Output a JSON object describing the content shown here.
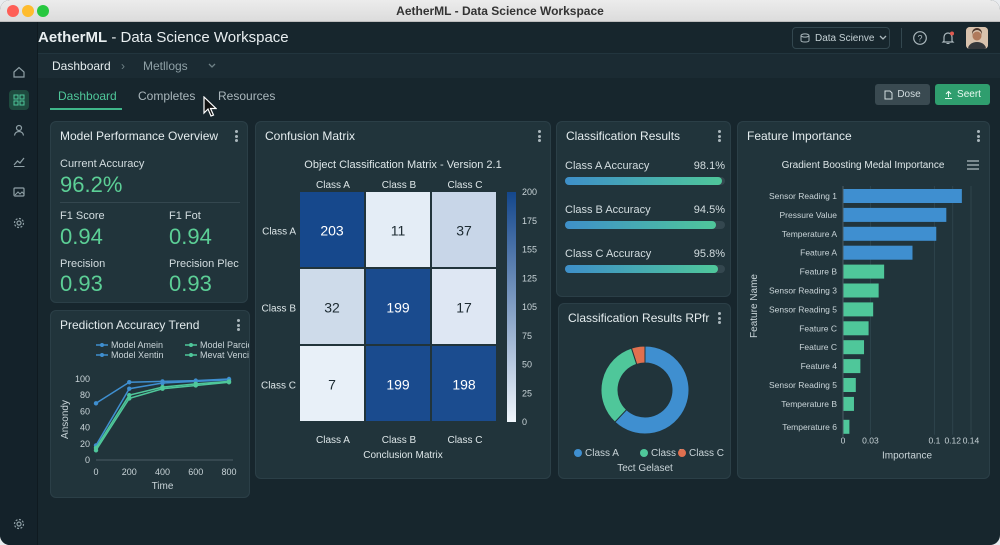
{
  "window": {
    "title": "AetherML - Data Science Workspace"
  },
  "header": {
    "brand": "AetherML",
    "subtitle": " - Data Science Workspace",
    "dataset_select": "Data Scienve"
  },
  "breadcrumb": {
    "items": [
      "Dashboard",
      "Metllogs"
    ]
  },
  "tabs": [
    {
      "label": "Dashboard",
      "active": true
    },
    {
      "label": "Completes"
    },
    {
      "label": "Resources"
    }
  ],
  "actions": {
    "dose": "Dose",
    "seert": "Seert"
  },
  "perf": {
    "title": "Model Performance Overview",
    "acc_label": "Current Accuracy",
    "acc_value": "96.2%",
    "f1_label": "F1 Score",
    "f1_value": "0.94",
    "f1fot_label": "F1 Fot",
    "f1fot_value": "0.94",
    "prec_label": "Precision",
    "prec_value": "0.93",
    "precplec_label": "Precision Plec",
    "precplec_value": "0.93"
  },
  "trend": {
    "title": "Prediction Accuracy Trend",
    "chart_data": {
      "type": "line",
      "xlabel": "Time",
      "ylabel": "Ansondy",
      "xlim": [
        0,
        800
      ],
      "ylim": [
        0,
        100
      ],
      "x_ticks": [
        "0",
        "200",
        "400",
        "600",
        "800"
      ],
      "y_ticks": [
        "0",
        "20",
        "40",
        "60",
        "80",
        "100"
      ],
      "x": [
        0,
        200,
        400,
        600,
        800
      ],
      "series": [
        {
          "name": "Model Amein",
          "color": "#3f8fd0",
          "values": [
            70,
            96,
            97,
            98,
            100
          ]
        },
        {
          "name": "Model Xentin",
          "color": "#3f8fd0",
          "values": [
            18,
            88,
            95,
            97,
            99
          ]
        },
        {
          "name": "Model Parcio",
          "color": "#4fc79a",
          "values": [
            15,
            80,
            90,
            94,
            97
          ]
        },
        {
          "name": "Mevat Vencio",
          "color": "#4fc79a",
          "values": [
            12,
            76,
            88,
            92,
            96
          ]
        }
      ]
    }
  },
  "confusion": {
    "title": "Confusion Matrix",
    "chart_data": {
      "type": "heatmap",
      "title": "Object Classification Matrix - Version 2.1",
      "xlabel": "Conclusion Matrix",
      "col_labels": [
        "Class A",
        "Class B",
        "Class C"
      ],
      "row_labels": [
        "Class A",
        "Class B",
        "Class C"
      ],
      "values": [
        [
          203,
          11,
          37
        ],
        [
          32,
          199,
          17
        ],
        [
          7,
          199,
          198
        ]
      ],
      "colorbar_ticks": [
        "200",
        "175",
        "155",
        "125",
        "105",
        "75",
        "50",
        "25",
        "0"
      ],
      "vmin": 0,
      "vmax": 203
    }
  },
  "results": {
    "title": "Classification Results",
    "items": [
      {
        "label": "Class A Accuracy",
        "value": "98.1%",
        "fraction": 0.981
      },
      {
        "label": "Class B Accuracy",
        "value": "94.5%",
        "fraction": 0.945
      },
      {
        "label": "Class C Accuracy",
        "value": "95.8%",
        "fraction": 0.958
      }
    ]
  },
  "donut": {
    "title": "Classification Results RPfr",
    "chart_data": {
      "type": "pie",
      "xlabel": "Tect Gelaset",
      "categories": [
        "Class A",
        "Class B",
        "Class C"
      ],
      "values": [
        62,
        33,
        5
      ],
      "colors": [
        "#3f8fd0",
        "#4fc79a",
        "#e0704f"
      ]
    }
  },
  "features": {
    "title": "Feature Importance",
    "chart_data": {
      "type": "bar",
      "orientation": "horizontal",
      "title": "Gradient Boosting Medal Importance",
      "xlabel": "Importance",
      "ylabel": "Feature Name",
      "x_ticks": [
        "0",
        "0.03",
        "0.1",
        "0.12",
        "0.14"
      ],
      "xlim": [
        0,
        0.14
      ],
      "categories": [
        "Sensor Reading 1",
        "Pressure Value",
        "Temperature A",
        "Feature A",
        "Feature B",
        "Sensor Reading 3",
        "Sensor Reading 5",
        "Feature C",
        "Feature C",
        "Feature 4",
        "Sensor Reading 5",
        "Temperature B",
        "Temperature 6"
      ],
      "values": [
        0.13,
        0.113,
        0.102,
        0.076,
        0.045,
        0.039,
        0.033,
        0.028,
        0.023,
        0.019,
        0.014,
        0.012,
        0.007
      ],
      "colors": [
        "#3f8fd0",
        "#3f8fd0",
        "#3f8fd0",
        "#3f8fd0",
        "#4fc79a",
        "#4fc79a",
        "#4fc79a",
        "#4fc79a",
        "#4fc79a",
        "#4fc79a",
        "#4fc79a",
        "#4fc79a",
        "#4fc79a"
      ]
    }
  }
}
